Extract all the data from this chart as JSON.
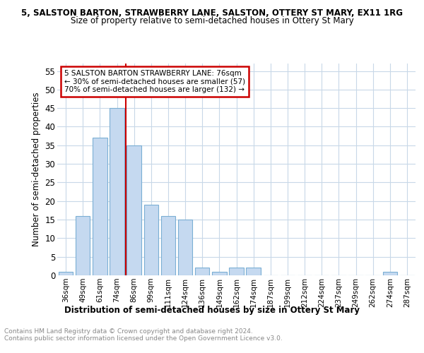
{
  "title_line1": "5, SALSTON BARTON, STRAWBERRY LANE, SALSTON, OTTERY ST MARY, EX11 1RG",
  "title_line2": "Size of property relative to semi-detached houses in Ottery St Mary",
  "xlabel": "Distribution of semi-detached houses by size in Ottery St Mary",
  "ylabel": "Number of semi-detached properties",
  "footer": "Contains HM Land Registry data © Crown copyright and database right 2024.\nContains public sector information licensed under the Open Government Licence v3.0.",
  "categories": [
    "36sqm",
    "49sqm",
    "61sqm",
    "74sqm",
    "86sqm",
    "99sqm",
    "111sqm",
    "124sqm",
    "136sqm",
    "149sqm",
    "162sqm",
    "174sqm",
    "187sqm",
    "199sqm",
    "212sqm",
    "224sqm",
    "237sqm",
    "249sqm",
    "262sqm",
    "274sqm",
    "287sqm"
  ],
  "values": [
    1,
    16,
    37,
    45,
    35,
    19,
    16,
    15,
    2,
    1,
    2,
    2,
    0,
    0,
    0,
    0,
    0,
    0,
    0,
    1,
    0
  ],
  "bar_color": "#c5d9f0",
  "bar_edge_color": "#7bafd4",
  "vline_x": 3.5,
  "vline_color": "#cc0000",
  "annotation_text": "5 SALSTON BARTON STRAWBERRY LANE: 76sqm\n← 30% of semi-detached houses are smaller (57)\n70% of semi-detached houses are larger (132) →",
  "annotation_box_color": "#ffffff",
  "annotation_box_edge": "#cc0000",
  "ylim": [
    0,
    57
  ],
  "yticks": [
    0,
    5,
    10,
    15,
    20,
    25,
    30,
    35,
    40,
    45,
    50,
    55
  ],
  "background_color": "#ffffff",
  "grid_color": "#c8d8e8"
}
